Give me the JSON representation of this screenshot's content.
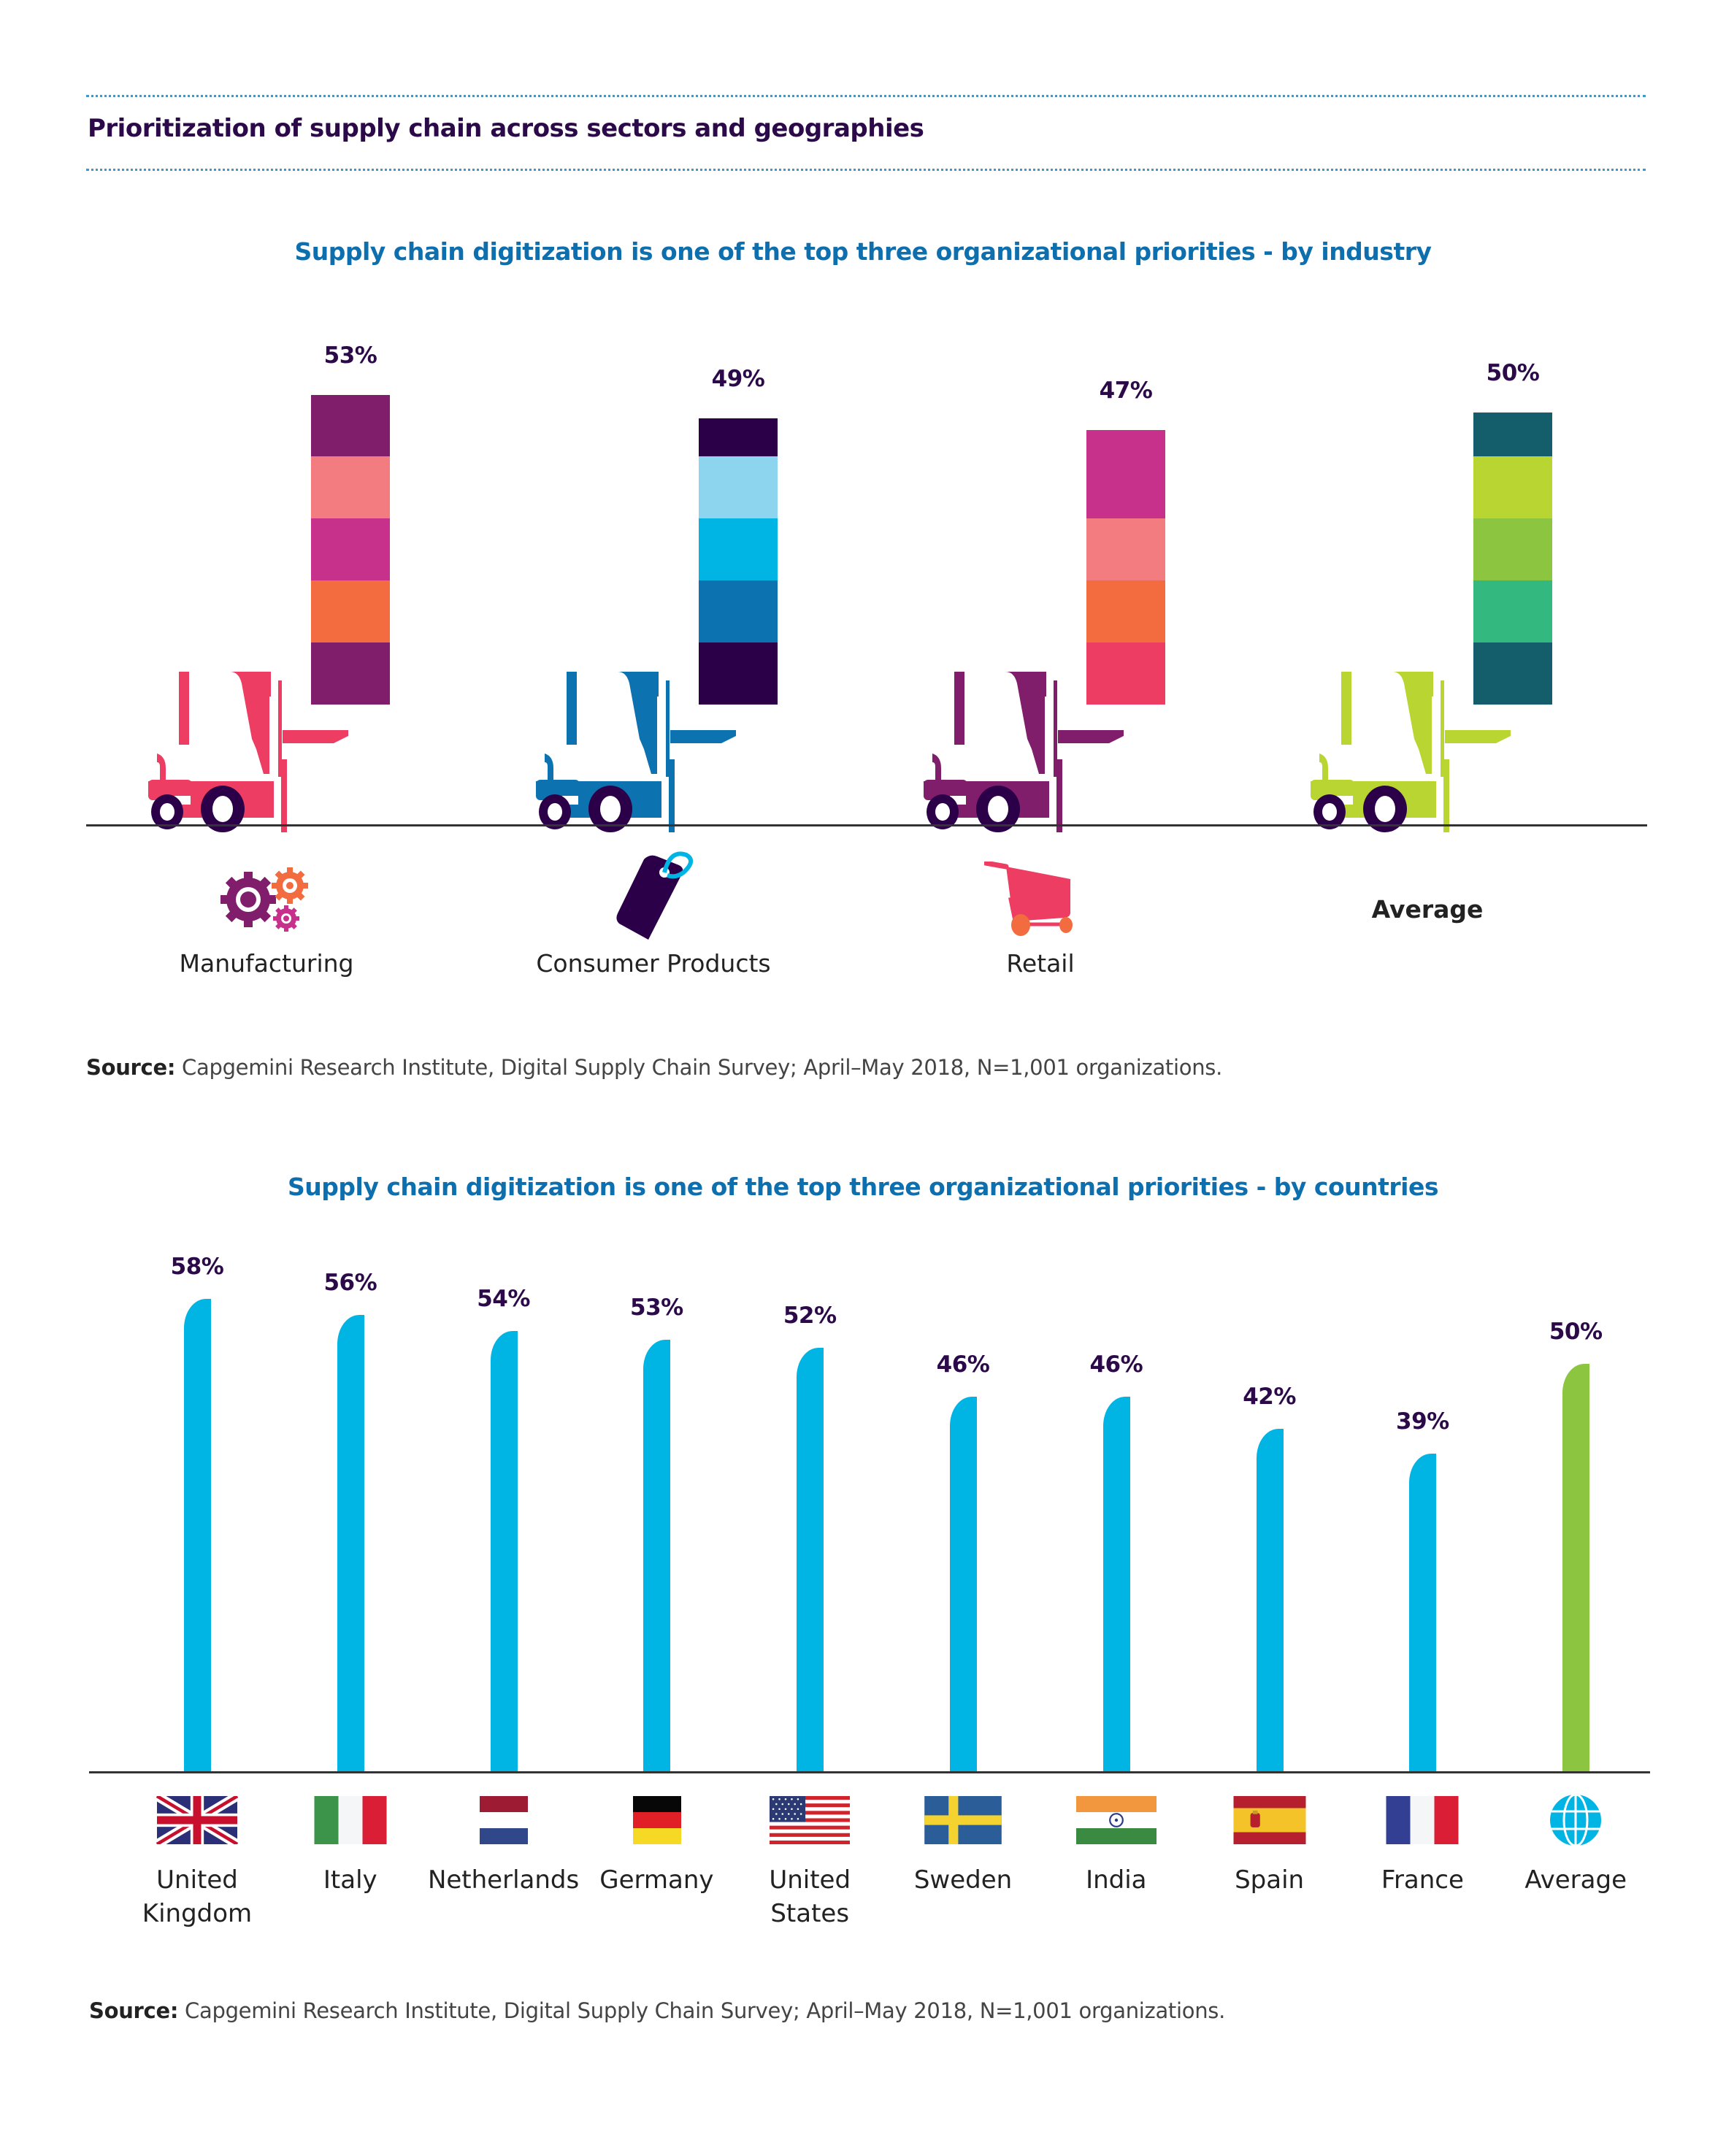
{
  "header": {
    "title": "Prioritization of supply chain across sectors and geographies"
  },
  "chart_data": [
    {
      "type": "bar",
      "title": "Supply chain digitization is one of the top three organizational priorities - by industry",
      "categories": [
        "Manufacturing",
        "Consumer Products",
        "Retail",
        "Average"
      ],
      "values": [
        53,
        49,
        47,
        50
      ],
      "value_labels": [
        "53%",
        "49%",
        "47%",
        "50%"
      ],
      "unit": "%",
      "ylim": [
        0,
        60
      ],
      "grid": false,
      "xlabel": "",
      "ylabel": "",
      "style": "stacked-block bars carried by forklift illustrations",
      "forklift_colors": [
        "#ee3d63",
        "#0c72b0",
        "#811e6c",
        "#b9d531"
      ],
      "block_colors": [
        [
          "#811e6c",
          "#f37c80",
          "#c8318b",
          "#f26c3f",
          "#811e6c"
        ],
        [
          "#2b0049",
          "#8dd5ef",
          "#00b5e4",
          "#0c72b0",
          "#2b0049"
        ],
        [
          "#c8318b",
          "#f37c80",
          "#f26c3f",
          "#ee3d63"
        ],
        [
          "#145d6b",
          "#b9d531",
          "#8cc540",
          "#33b880",
          "#145d6b"
        ]
      ],
      "category_icons": [
        "gears-icon",
        "price-tag-icon",
        "shopping-cart-icon",
        ""
      ],
      "source_label": "Source:",
      "source": "Capgemini Research Institute, Digital Supply Chain Survey; April–May 2018, N=1,001 organizations."
    },
    {
      "type": "bar",
      "title": "Supply chain digitization is one of the top three organizational priorities - by countries",
      "categories": [
        "United Kingdom",
        "Italy",
        "Netherlands",
        "Germany",
        "United States",
        "Sweden",
        "India",
        "Spain",
        "France",
        "Average"
      ],
      "label_lines": [
        [
          "United",
          "Kingdom"
        ],
        [
          "Italy"
        ],
        [
          "Netherlands"
        ],
        [
          "Germany"
        ],
        [
          "United",
          "States"
        ],
        [
          "Sweden"
        ],
        [
          "India"
        ],
        [
          "Spain"
        ],
        [
          "France"
        ],
        [
          "Average"
        ]
      ],
      "values": [
        58,
        56,
        54,
        53,
        52,
        46,
        46,
        42,
        39,
        50
      ],
      "value_labels": [
        "58%",
        "56%",
        "54%",
        "53%",
        "52%",
        "46%",
        "46%",
        "42%",
        "39%",
        "50%"
      ],
      "unit": "%",
      "ylim": [
        0,
        60
      ],
      "grid": false,
      "xlabel": "",
      "ylabel": "",
      "bar_colors": [
        "#00b5e4",
        "#00b5e4",
        "#00b5e4",
        "#00b5e4",
        "#00b5e4",
        "#00b5e4",
        "#00b5e4",
        "#00b5e4",
        "#00b5e4",
        "#8cc540"
      ],
      "category_icons": [
        "uk-flag-icon",
        "italy-flag-icon",
        "netherlands-flag-icon",
        "germany-flag-icon",
        "usa-flag-icon",
        "sweden-flag-icon",
        "india-flag-icon",
        "spain-flag-icon",
        "france-flag-icon",
        "globe-icon"
      ],
      "source_label": "Source:",
      "source": "Capgemini Research Institute, Digital Supply Chain Survey; April–May 2018, N=1,001 organizations."
    }
  ],
  "colors": {
    "title": "#2c0a4a",
    "subtitle": "#0e6faf",
    "value_label": "#2c0a4a",
    "wheel": "#2b0049",
    "axis": "#333333"
  }
}
